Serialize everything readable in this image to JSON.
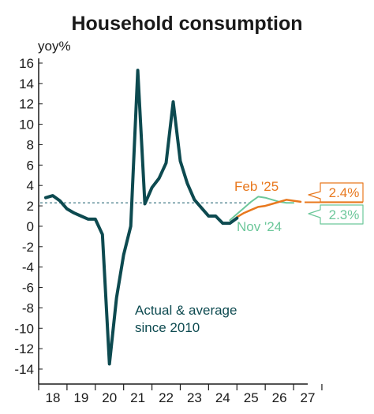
{
  "colors": {
    "actual": "#0d4a50",
    "feb25": "#e8781e",
    "nov24": "#6cc79a",
    "average": "#2f6b78",
    "axis": "#1a1a1a"
  },
  "chart_data": {
    "type": "line",
    "title": "Household consumption",
    "ylabel": "yoy%",
    "xlabel": "",
    "ylim": [
      -14,
      16
    ],
    "y_ticks": [
      16,
      14,
      12,
      10,
      8,
      6,
      4,
      2,
      0,
      -2,
      -4,
      -6,
      -8,
      -10,
      -12,
      -14
    ],
    "x_tick_labels": [
      "18",
      "19",
      "20",
      "21",
      "22",
      "23",
      "24",
      "25",
      "26",
      "27"
    ],
    "grid": false,
    "series": [
      {
        "id": "actual",
        "points": [
          [
            2018.0,
            2.8
          ],
          [
            2018.25,
            3.0
          ],
          [
            2018.5,
            2.5
          ],
          [
            2018.75,
            1.7
          ],
          [
            2019.0,
            1.3
          ],
          [
            2019.25,
            1.0
          ],
          [
            2019.5,
            0.7
          ],
          [
            2019.75,
            0.7
          ],
          [
            2020.0,
            -0.8
          ],
          [
            2020.25,
            -13.5
          ],
          [
            2020.5,
            -7.0
          ],
          [
            2020.75,
            -2.8
          ],
          [
            2021.0,
            0.0
          ],
          [
            2021.25,
            15.3
          ],
          [
            2021.5,
            2.2
          ],
          [
            2021.75,
            3.8
          ],
          [
            2022.0,
            4.7
          ],
          [
            2022.25,
            6.2
          ],
          [
            2022.5,
            12.2
          ],
          [
            2022.75,
            6.4
          ],
          [
            2023.0,
            4.2
          ],
          [
            2023.25,
            2.6
          ],
          [
            2023.5,
            1.8
          ],
          [
            2023.75,
            1.0
          ],
          [
            2024.0,
            1.0
          ],
          [
            2024.25,
            0.3
          ],
          [
            2024.5,
            0.3
          ],
          [
            2024.75,
            0.8
          ]
        ]
      },
      {
        "id": "nov24",
        "name": "Nov '24",
        "points": [
          [
            2024.5,
            0.6
          ],
          [
            2024.75,
            1.2
          ],
          [
            2025.0,
            1.8
          ],
          [
            2025.25,
            2.4
          ],
          [
            2025.5,
            2.9
          ],
          [
            2025.75,
            2.8
          ],
          [
            2026.0,
            2.6
          ],
          [
            2026.25,
            2.4
          ],
          [
            2026.5,
            2.3
          ],
          [
            2026.75,
            2.3
          ]
        ]
      },
      {
        "id": "feb25",
        "name": "Feb '25",
        "points": [
          [
            2024.75,
            0.9
          ],
          [
            2025.0,
            1.3
          ],
          [
            2025.25,
            1.6
          ],
          [
            2025.5,
            1.9
          ],
          [
            2025.75,
            2.0
          ],
          [
            2026.0,
            2.2
          ],
          [
            2026.25,
            2.4
          ],
          [
            2026.5,
            2.6
          ],
          [
            2026.75,
            2.5
          ],
          [
            2027.0,
            2.4
          ]
        ]
      }
    ],
    "average_line": {
      "value": 2.3
    },
    "annotations": {
      "average": "Actual & average since 2010",
      "average_line1": "Actual & average",
      "average_line2": "since 2010",
      "feb25": "Feb '25",
      "nov24": "Nov '24"
    },
    "end_labels": {
      "feb25": "2.4%",
      "nov24": "2.3%"
    }
  }
}
